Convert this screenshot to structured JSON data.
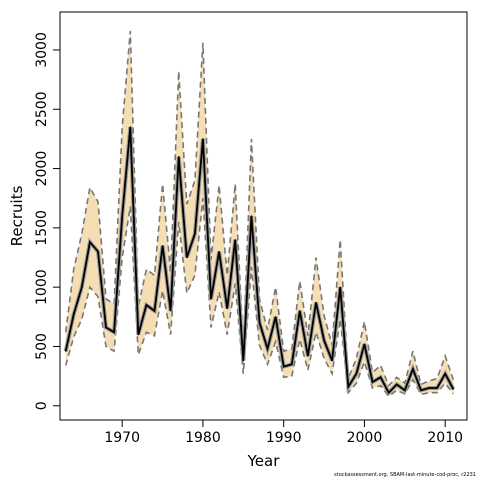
{
  "chart_data": {
    "type": "line",
    "xlabel": "Year",
    "ylabel": "Recruits",
    "xlim": [
      1962.3,
      2012.7
    ],
    "ylim": [
      -120,
      3320
    ],
    "x_ticks": [
      1970,
      1980,
      1990,
      2000,
      2010
    ],
    "y_ticks": [
      0,
      500,
      1000,
      1500,
      2000,
      2500,
      3000
    ],
    "grid": false,
    "band_color": "#f5deb3",
    "line_color": "#000000",
    "bound_color": "#777777",
    "x": [
      1963,
      1964,
      1965,
      1966,
      1967,
      1968,
      1969,
      1970,
      1971,
      1972,
      1973,
      1974,
      1975,
      1976,
      1977,
      1978,
      1979,
      1980,
      1981,
      1982,
      1983,
      1984,
      1985,
      1986,
      1987,
      1988,
      1989,
      1990,
      1991,
      1992,
      1993,
      1994,
      1995,
      1996,
      1997,
      1998,
      1999,
      2000,
      2001,
      2002,
      2003,
      2004,
      2005,
      2006,
      2007,
      2008,
      2009,
      2010,
      2011
    ],
    "series": [
      {
        "values": [
          460,
          770,
          1000,
          1380,
          1300,
          660,
          620,
          1600,
          2350,
          600,
          850,
          800,
          1350,
          800,
          2100,
          1250,
          1450,
          2250,
          900,
          1300,
          820,
          1400,
          380,
          1600,
          700,
          480,
          750,
          330,
          350,
          800,
          420,
          870,
          550,
          380,
          1000,
          160,
          270,
          520,
          200,
          240,
          110,
          180,
          130,
          310,
          130,
          150,
          150,
          270,
          140
        ]
      },
      {
        "name": "upper",
        "values": [
          620,
          1150,
          1450,
          1840,
          1720,
          900,
          860,
          2350,
          3160,
          840,
          1150,
          1100,
          1870,
          1120,
          2820,
          1700,
          1900,
          3060,
          1230,
          1860,
          1100,
          1870,
          490,
          2250,
          900,
          640,
          1000,
          460,
          480,
          1050,
          590,
          1250,
          760,
          510,
          1400,
          230,
          400,
          710,
          280,
          340,
          170,
          240,
          190,
          460,
          180,
          210,
          230,
          420,
          220
        ]
      },
      {
        "name": "lower",
        "values": [
          340,
          580,
          730,
          1000,
          920,
          500,
          460,
          1250,
          1680,
          430,
          620,
          590,
          970,
          600,
          1550,
          950,
          1100,
          1750,
          660,
          960,
          600,
          1030,
          270,
          1170,
          510,
          350,
          540,
          240,
          250,
          560,
          300,
          620,
          400,
          270,
          730,
          110,
          190,
          370,
          150,
          170,
          80,
          130,
          100,
          220,
          95,
          110,
          110,
          190,
          100
        ]
      }
    ]
  },
  "footnote": "stockassessment.org, SBAM-last-minute-cod-proc, r2231"
}
